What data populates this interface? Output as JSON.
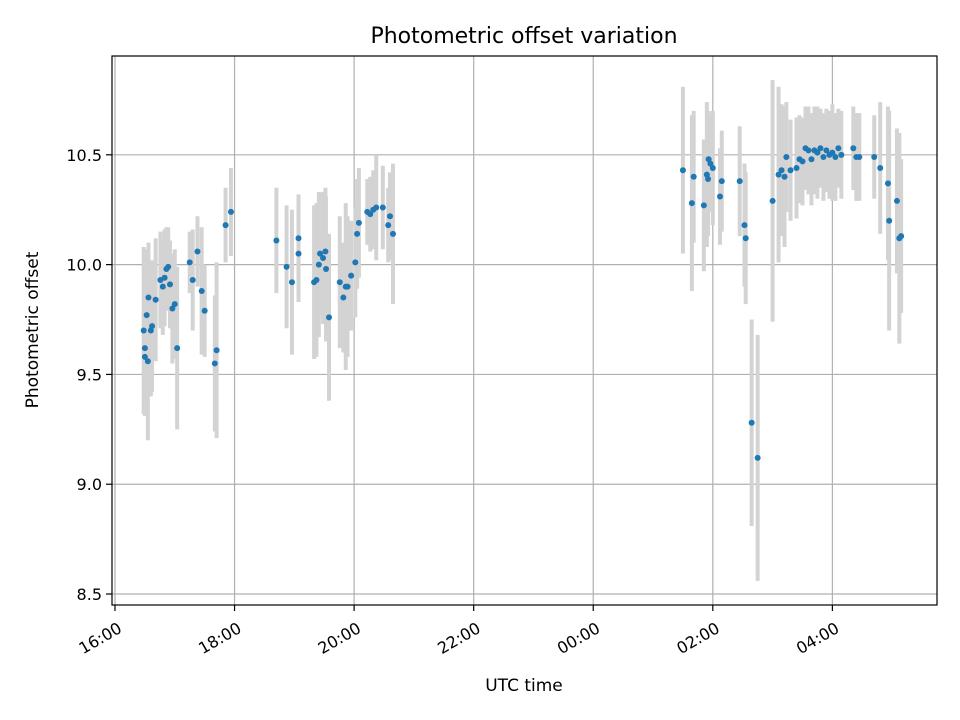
{
  "chart_data": {
    "type": "scatter",
    "title": "Photometric offset variation",
    "xlabel": "UTC time",
    "ylabel": "Photometric offset",
    "grid": true,
    "xlim_hours": [
      15.95,
      29.75
    ],
    "ylim": [
      8.45,
      10.95
    ],
    "x_ticks": [
      {
        "label": "16:00",
        "hour": 16
      },
      {
        "label": "18:00",
        "hour": 18
      },
      {
        "label": "20:00",
        "hour": 20
      },
      {
        "label": "22:00",
        "hour": 22
      },
      {
        "label": "00:00",
        "hour": 24
      },
      {
        "label": "02:00",
        "hour": 26
      },
      {
        "label": "04:00",
        "hour": 28
      }
    ],
    "y_ticks": [
      {
        "label": "8.5",
        "value": 8.5
      },
      {
        "label": "9.0",
        "value": 9.0
      },
      {
        "label": "9.5",
        "value": 9.5
      },
      {
        "label": "10.0",
        "value": 10.0
      },
      {
        "label": "10.5",
        "value": 10.5
      }
    ],
    "colors": {
      "points": "#1f77b4",
      "errorbars": "#d3d3d3",
      "grid": "#b0b0b0"
    },
    "series": [
      {
        "name": "offset",
        "points": [
          {
            "t": 16.48,
            "y": 9.7,
            "err": 0.38
          },
          {
            "t": 16.5,
            "y": 9.62,
            "err": 0.3
          },
          {
            "t": 16.5,
            "y": 9.58,
            "err": 0.27
          },
          {
            "t": 16.53,
            "y": 9.77,
            "err": 0.3
          },
          {
            "t": 16.55,
            "y": 9.56,
            "err": 0.36
          },
          {
            "t": 16.56,
            "y": 9.85,
            "err": 0.25
          },
          {
            "t": 16.6,
            "y": 9.7,
            "err": 0.3
          },
          {
            "t": 16.62,
            "y": 9.72,
            "err": 0.3
          },
          {
            "t": 16.68,
            "y": 9.84,
            "err": 0.28
          },
          {
            "t": 16.76,
            "y": 9.93,
            "err": 0.22
          },
          {
            "t": 16.8,
            "y": 9.9,
            "err": 0.22
          },
          {
            "t": 16.83,
            "y": 9.94,
            "err": 0.22
          },
          {
            "t": 16.86,
            "y": 9.98,
            "err": 0.19
          },
          {
            "t": 16.89,
            "y": 9.99,
            "err": 0.18
          },
          {
            "t": 16.92,
            "y": 9.91,
            "err": 0.2
          },
          {
            "t": 16.96,
            "y": 9.8,
            "err": 0.25
          },
          {
            "t": 17.0,
            "y": 9.82,
            "err": 0.25
          },
          {
            "t": 17.04,
            "y": 9.62,
            "err": 0.37
          },
          {
            "t": 17.25,
            "y": 10.01,
            "err": 0.14
          },
          {
            "t": 17.3,
            "y": 9.93,
            "err": 0.23
          },
          {
            "t": 17.38,
            "y": 10.06,
            "err": 0.16
          },
          {
            "t": 17.45,
            "y": 9.88,
            "err": 0.29
          },
          {
            "t": 17.5,
            "y": 9.79,
            "err": 0.21
          },
          {
            "t": 17.67,
            "y": 9.55,
            "err": 0.31
          },
          {
            "t": 17.7,
            "y": 9.61,
            "err": 0.4
          },
          {
            "t": 17.85,
            "y": 10.18,
            "err": 0.17
          },
          {
            "t": 17.94,
            "y": 10.24,
            "err": 0.2
          },
          {
            "t": 18.7,
            "y": 10.11,
            "err": 0.24
          },
          {
            "t": 18.87,
            "y": 9.99,
            "err": 0.28
          },
          {
            "t": 18.96,
            "y": 9.92,
            "err": 0.33
          },
          {
            "t": 19.07,
            "y": 10.12,
            "err": 0.2
          },
          {
            "t": 19.07,
            "y": 10.05,
            "err": 0.22
          },
          {
            "t": 19.33,
            "y": 9.92,
            "err": 0.35
          },
          {
            "t": 19.37,
            "y": 9.93,
            "err": 0.35
          },
          {
            "t": 19.41,
            "y": 10.0,
            "err": 0.33
          },
          {
            "t": 19.43,
            "y": 10.05,
            "err": 0.28
          },
          {
            "t": 19.48,
            "y": 10.03,
            "err": 0.3
          },
          {
            "t": 19.52,
            "y": 10.06,
            "err": 0.29
          },
          {
            "t": 19.53,
            "y": 9.98,
            "err": 0.33
          },
          {
            "t": 19.58,
            "y": 9.76,
            "err": 0.38
          },
          {
            "t": 19.76,
            "y": 9.92,
            "err": 0.3
          },
          {
            "t": 19.82,
            "y": 9.85,
            "err": 0.25
          },
          {
            "t": 19.86,
            "y": 9.9,
            "err": 0.38
          },
          {
            "t": 19.89,
            "y": 9.9,
            "err": 0.32
          },
          {
            "t": 19.95,
            "y": 9.95,
            "err": 0.25
          },
          {
            "t": 20.02,
            "y": 10.01,
            "err": 0.25
          },
          {
            "t": 20.05,
            "y": 10.14,
            "err": 0.25
          },
          {
            "t": 20.08,
            "y": 10.19,
            "err": 0.25
          },
          {
            "t": 20.22,
            "y": 10.24,
            "err": 0.15
          },
          {
            "t": 20.27,
            "y": 10.23,
            "err": 0.17
          },
          {
            "t": 20.32,
            "y": 10.25,
            "err": 0.18
          },
          {
            "t": 20.37,
            "y": 10.26,
            "err": 0.24
          },
          {
            "t": 20.48,
            "y": 10.26,
            "err": 0.19
          },
          {
            "t": 20.57,
            "y": 10.18,
            "err": 0.17
          },
          {
            "t": 20.6,
            "y": 10.22,
            "err": 0.2
          },
          {
            "t": 20.65,
            "y": 10.14,
            "err": 0.32
          },
          {
            "t": 25.5,
            "y": 10.43,
            "err": 0.38
          },
          {
            "t": 25.65,
            "y": 10.28,
            "err": 0.4
          },
          {
            "t": 25.68,
            "y": 10.4,
            "err": 0.3
          },
          {
            "t": 25.85,
            "y": 10.27,
            "err": 0.3
          },
          {
            "t": 25.9,
            "y": 10.41,
            "err": 0.33
          },
          {
            "t": 25.92,
            "y": 10.39,
            "err": 0.26
          },
          {
            "t": 25.93,
            "y": 10.48,
            "err": 0.22
          },
          {
            "t": 25.96,
            "y": 10.46,
            "err": 0.22
          },
          {
            "t": 26.0,
            "y": 10.44,
            "err": 0.26
          },
          {
            "t": 26.12,
            "y": 10.31,
            "err": 0.22
          },
          {
            "t": 26.15,
            "y": 10.38,
            "err": 0.23
          },
          {
            "t": 26.45,
            "y": 10.38,
            "err": 0.25
          },
          {
            "t": 26.53,
            "y": 10.18,
            "err": 0.28
          },
          {
            "t": 26.55,
            "y": 10.12,
            "err": 0.3
          },
          {
            "t": 26.65,
            "y": 9.28,
            "err": 0.47
          },
          {
            "t": 26.75,
            "y": 9.12,
            "err": 0.56
          },
          {
            "t": 27.0,
            "y": 10.29,
            "err": 0.55
          },
          {
            "t": 27.1,
            "y": 10.41,
            "err": 0.4
          },
          {
            "t": 27.15,
            "y": 10.43,
            "err": 0.3
          },
          {
            "t": 27.2,
            "y": 10.4,
            "err": 0.32
          },
          {
            "t": 27.23,
            "y": 10.49,
            "err": 0.25
          },
          {
            "t": 27.3,
            "y": 10.43,
            "err": 0.23
          },
          {
            "t": 27.4,
            "y": 10.44,
            "err": 0.23
          },
          {
            "t": 27.45,
            "y": 10.48,
            "err": 0.2
          },
          {
            "t": 27.5,
            "y": 10.47,
            "err": 0.2
          },
          {
            "t": 27.55,
            "y": 10.53,
            "err": 0.19
          },
          {
            "t": 27.6,
            "y": 10.52,
            "err": 0.2
          },
          {
            "t": 27.65,
            "y": 10.48,
            "err": 0.21
          },
          {
            "t": 27.7,
            "y": 10.52,
            "err": 0.2
          },
          {
            "t": 27.75,
            "y": 10.51,
            "err": 0.21
          },
          {
            "t": 27.8,
            "y": 10.53,
            "err": 0.18
          },
          {
            "t": 27.85,
            "y": 10.49,
            "err": 0.2
          },
          {
            "t": 27.9,
            "y": 10.52,
            "err": 0.19
          },
          {
            "t": 27.95,
            "y": 10.5,
            "err": 0.2
          },
          {
            "t": 28.0,
            "y": 10.51,
            "err": 0.22
          },
          {
            "t": 28.05,
            "y": 10.49,
            "err": 0.2
          },
          {
            "t": 28.1,
            "y": 10.53,
            "err": 0.18
          },
          {
            "t": 28.15,
            "y": 10.5,
            "err": 0.2
          },
          {
            "t": 28.35,
            "y": 10.53,
            "err": 0.19
          },
          {
            "t": 28.4,
            "y": 10.49,
            "err": 0.2
          },
          {
            "t": 28.45,
            "y": 10.49,
            "err": 0.2
          },
          {
            "t": 28.7,
            "y": 10.49,
            "err": 0.19
          },
          {
            "t": 28.8,
            "y": 10.44,
            "err": 0.3
          },
          {
            "t": 28.93,
            "y": 10.37,
            "err": 0.35
          },
          {
            "t": 28.95,
            "y": 10.2,
            "err": 0.5
          },
          {
            "t": 29.08,
            "y": 10.29,
            "err": 0.33
          },
          {
            "t": 29.12,
            "y": 10.12,
            "err": 0.48
          },
          {
            "t": 29.15,
            "y": 10.13,
            "err": 0.35
          }
        ]
      }
    ]
  }
}
